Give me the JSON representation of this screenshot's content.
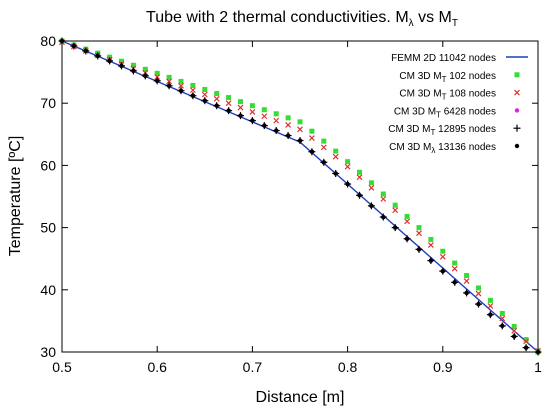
{
  "chart_data": {
    "type": "scatter",
    "title": "Tube with 2 thermal conductivities. Mλ vs MT",
    "title_parts": {
      "prefix": "Tube with 2 thermal conductivities. M",
      "sub1": "λ",
      "middle": " vs M",
      "sub2": "T"
    },
    "xlabel": "Distance [m]",
    "ylabel": "Temperature [ºC]",
    "xlim": [
      0.5,
      1.0
    ],
    "ylim": [
      30,
      80
    ],
    "xticks": [
      0.5,
      0.6,
      0.7,
      0.8,
      0.9,
      1.0
    ],
    "xtick_labels": [
      "0.5",
      "0.6",
      "0.7",
      "0.8",
      "0.9",
      "1"
    ],
    "yticks": [
      30,
      40,
      50,
      60,
      70,
      80
    ],
    "ytick_labels": [
      "30",
      "40",
      "50",
      "60",
      "70",
      "80"
    ],
    "grid": false,
    "legend_position": "top-right",
    "series": [
      {
        "name": "FEMM 2D 11042 nodes",
        "label_main": "FEMM 2D 11042 nodes",
        "label_sub": "",
        "label_rest": "",
        "marker": "line",
        "color": "#1f3fbf",
        "x": [
          0.5,
          0.75,
          1.0
        ],
        "y": [
          80.0,
          63.75,
          30.0
        ]
      },
      {
        "name": "CM 3D MT 102 nodes",
        "label_main": "CM 3D M",
        "label_sub": "T",
        "label_rest": " 102 nodes",
        "marker": "square",
        "color": "#33dd33",
        "x": [
          0.5,
          0.5125,
          0.525,
          0.5375,
          0.55,
          0.5625,
          0.575,
          0.5875,
          0.6,
          0.6125,
          0.625,
          0.6375,
          0.65,
          0.6625,
          0.675,
          0.6875,
          0.7,
          0.7125,
          0.725,
          0.7375,
          0.75,
          0.7625,
          0.775,
          0.7875,
          0.8,
          0.8125,
          0.825,
          0.8375,
          0.85,
          0.8625,
          0.875,
          0.8875,
          0.9,
          0.9125,
          0.925,
          0.9375,
          0.95,
          0.9625,
          0.975,
          0.9875,
          1.0
        ],
        "y": [
          80.0,
          79.35,
          78.7,
          78.05,
          77.4,
          76.75,
          76.1,
          75.45,
          74.8,
          74.15,
          73.5,
          72.85,
          72.2,
          71.55,
          70.9,
          70.25,
          69.6,
          68.95,
          68.3,
          67.65,
          67.0,
          65.5,
          63.9,
          62.3,
          60.6,
          58.9,
          57.2,
          55.4,
          53.6,
          51.8,
          50.0,
          48.1,
          46.2,
          44.3,
          42.3,
          40.3,
          38.3,
          36.2,
          34.1,
          32.0,
          30.0
        ]
      },
      {
        "name": "CM 3D MT 108 nodes",
        "label_main": "CM 3D M",
        "label_sub": "T",
        "label_rest": " 108 nodes",
        "marker": "x",
        "color": "#e03030",
        "x": [
          0.5,
          0.5125,
          0.525,
          0.5375,
          0.55,
          0.5625,
          0.575,
          0.5875,
          0.6,
          0.6125,
          0.625,
          0.6375,
          0.65,
          0.6625,
          0.675,
          0.6875,
          0.7,
          0.7125,
          0.725,
          0.7375,
          0.75,
          0.7625,
          0.775,
          0.7875,
          0.8,
          0.8125,
          0.825,
          0.8375,
          0.85,
          0.8625,
          0.875,
          0.8875,
          0.9,
          0.9125,
          0.925,
          0.9375,
          0.95,
          0.9625,
          0.975,
          0.9875,
          1.0
        ],
        "y": [
          79.8,
          79.1,
          78.4,
          77.7,
          77.0,
          76.3,
          75.6,
          74.9,
          74.2,
          73.5,
          72.8,
          72.1,
          71.4,
          70.7,
          70.0,
          69.3,
          68.6,
          67.9,
          67.2,
          66.5,
          65.8,
          64.4,
          62.9,
          61.4,
          59.8,
          58.1,
          56.4,
          54.6,
          52.8,
          51.0,
          49.1,
          47.2,
          45.3,
          43.4,
          41.4,
          39.4,
          37.4,
          35.4,
          33.4,
          31.7,
          30.2
        ]
      },
      {
        "name": "CM 3D MT 6428 nodes",
        "label_main": "CM 3D M",
        "label_sub": "T",
        "label_rest": " 6428 nodes",
        "marker": "dot",
        "color": "#e020e0",
        "x": [
          0.5,
          0.5125,
          0.525,
          0.5375,
          0.55,
          0.5625,
          0.575,
          0.5875,
          0.6,
          0.6125,
          0.625,
          0.6375,
          0.65,
          0.6625,
          0.675,
          0.6875,
          0.7,
          0.7125,
          0.725,
          0.7375,
          0.75,
          0.7625,
          0.775,
          0.7875,
          0.8,
          0.8125,
          0.825,
          0.8375,
          0.85,
          0.8625,
          0.875,
          0.8875,
          0.9,
          0.9125,
          0.925,
          0.9375,
          0.95,
          0.9625,
          0.975,
          0.9875,
          1.0
        ],
        "y": [
          80.0,
          79.2,
          78.4,
          77.6,
          76.8,
          76.0,
          75.2,
          74.4,
          73.6,
          72.8,
          72.0,
          71.2,
          70.4,
          69.6,
          68.8,
          68.0,
          67.2,
          66.4,
          65.6,
          64.8,
          64.0,
          62.2,
          60.5,
          58.7,
          57.0,
          55.2,
          53.5,
          51.7,
          50.0,
          48.2,
          46.5,
          44.7,
          43.0,
          41.2,
          39.5,
          37.7,
          36.0,
          34.2,
          32.5,
          30.7,
          30.0
        ]
      },
      {
        "name": "CM 3D MT 12895 nodes",
        "label_main": "CM 3D M",
        "label_sub": "T",
        "label_rest": " 12895 nodes",
        "marker": "plus",
        "color": "#000000",
        "x": [
          0.5,
          0.5125,
          0.525,
          0.5375,
          0.55,
          0.5625,
          0.575,
          0.5875,
          0.6,
          0.6125,
          0.625,
          0.6375,
          0.65,
          0.6625,
          0.675,
          0.6875,
          0.7,
          0.7125,
          0.725,
          0.7375,
          0.75,
          0.7625,
          0.775,
          0.7875,
          0.8,
          0.8125,
          0.825,
          0.8375,
          0.85,
          0.8625,
          0.875,
          0.8875,
          0.9,
          0.9125,
          0.925,
          0.9375,
          0.95,
          0.9625,
          0.975,
          0.9875,
          1.0
        ],
        "y": [
          80.0,
          79.2,
          78.4,
          77.6,
          76.8,
          76.0,
          75.2,
          74.4,
          73.6,
          72.8,
          72.0,
          71.2,
          70.4,
          69.6,
          68.8,
          68.0,
          67.2,
          66.4,
          65.6,
          64.8,
          64.0,
          62.2,
          60.5,
          58.7,
          57.0,
          55.2,
          53.5,
          51.7,
          50.0,
          48.2,
          46.5,
          44.7,
          43.0,
          41.2,
          39.5,
          37.7,
          36.0,
          34.2,
          32.5,
          30.7,
          30.0
        ]
      },
      {
        "name": "CM 3D Mλ 13136 nodes",
        "label_main": "CM 3D M",
        "label_sub": "λ",
        "label_rest": " 13136 nodes",
        "marker": "dot",
        "color": "#000000",
        "x": [
          0.5,
          0.5125,
          0.525,
          0.5375,
          0.55,
          0.5625,
          0.575,
          0.5875,
          0.6,
          0.6125,
          0.625,
          0.6375,
          0.65,
          0.6625,
          0.675,
          0.6875,
          0.7,
          0.7125,
          0.725,
          0.7375,
          0.75,
          0.7625,
          0.775,
          0.7875,
          0.8,
          0.8125,
          0.825,
          0.8375,
          0.85,
          0.8625,
          0.875,
          0.8875,
          0.9,
          0.9125,
          0.925,
          0.9375,
          0.95,
          0.9625,
          0.975,
          0.9875,
          1.0
        ],
        "y": [
          80.0,
          79.2,
          78.4,
          77.6,
          76.8,
          76.0,
          75.2,
          74.4,
          73.6,
          72.8,
          72.0,
          71.2,
          70.4,
          69.6,
          68.8,
          68.0,
          67.2,
          66.4,
          65.6,
          64.8,
          64.0,
          62.2,
          60.5,
          58.7,
          57.0,
          55.2,
          53.5,
          51.7,
          50.0,
          48.2,
          46.5,
          44.7,
          43.0,
          41.2,
          39.5,
          37.7,
          36.0,
          34.2,
          32.5,
          30.7,
          30.0
        ]
      }
    ]
  }
}
